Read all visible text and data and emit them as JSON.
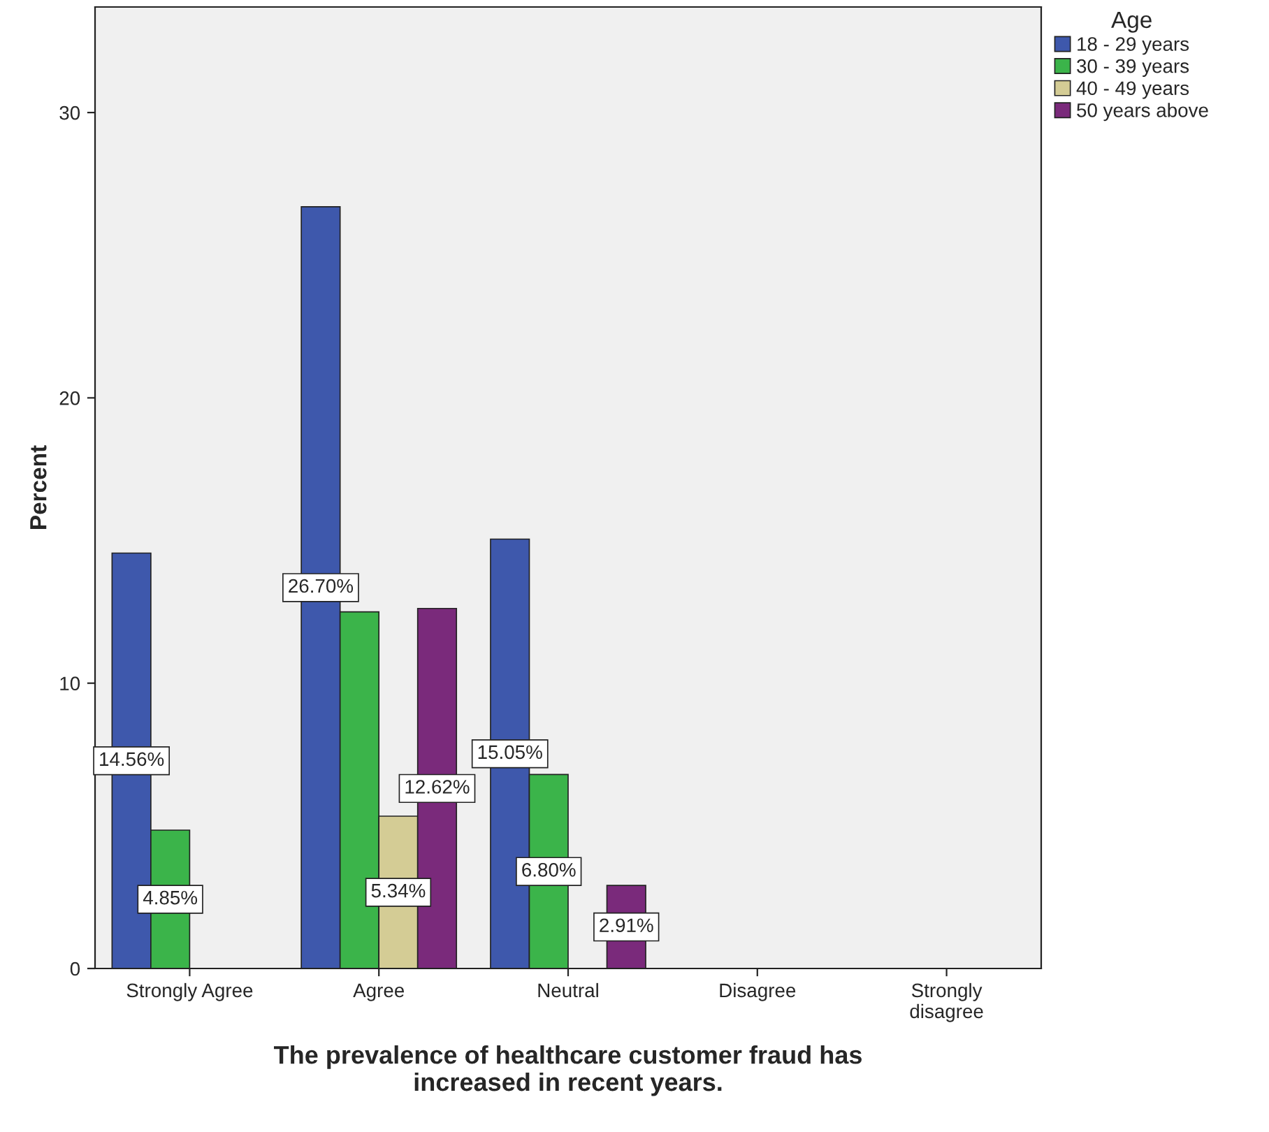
{
  "chart_data": {
    "type": "bar",
    "xlabel": "The prevalence of healthcare customer fraud has\nincreased in recent years.",
    "ylabel": "Percent",
    "legend_title": "Age",
    "categories": [
      "Strongly Agree",
      "Agree",
      "Neutral",
      "Disagree",
      "Strongly disagree"
    ],
    "series": [
      {
        "name": "18 - 29 years",
        "color": "#3e58ac",
        "values": [
          14.56,
          26.7,
          15.05,
          null,
          null
        ],
        "value_labels": [
          "14.56%",
          "26.70%",
          "15.05%",
          null,
          null
        ]
      },
      {
        "name": "30 - 39 years",
        "color": "#3bb44a",
        "values": [
          4.85,
          12.5,
          6.8,
          null,
          null
        ],
        "value_labels": [
          "4.85%",
          null,
          "6.80%",
          null,
          null
        ]
      },
      {
        "name": "40 - 49 years",
        "color": "#d4cc95",
        "values": [
          null,
          5.34,
          null,
          null,
          null
        ],
        "value_labels": [
          null,
          "5.34%",
          null,
          null,
          null
        ]
      },
      {
        "name": "50 years above",
        "color": "#7a2a7b",
        "values": [
          null,
          12.62,
          2.91,
          null,
          null
        ],
        "value_labels": [
          null,
          "12.62%",
          "2.91%",
          null,
          null
        ]
      }
    ],
    "ylim": [
      0,
      33.7
    ],
    "yticks": [
      0,
      10,
      20,
      30
    ],
    "grid": false,
    "legend": "top right"
  }
}
